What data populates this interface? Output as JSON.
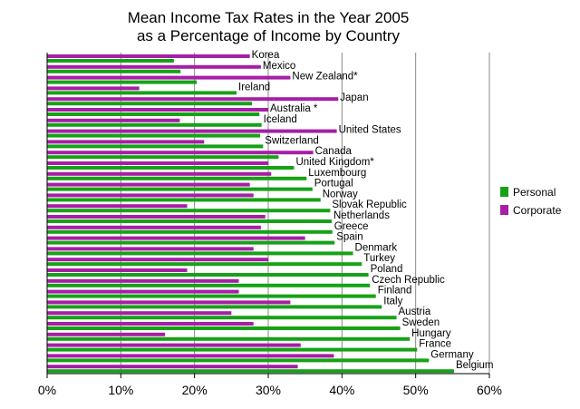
{
  "chart_data": {
    "type": "bar",
    "orientation": "horizontal",
    "title": "Mean Income Tax Rates in the Year 2005",
    "subtitle": "as a Percentage of Income by Country",
    "xlabel": "",
    "ylabel": "",
    "xlim": [
      0,
      60
    ],
    "x_ticks": [
      "0%",
      "10%",
      "20%",
      "30%",
      "40%",
      "50%",
      "60%"
    ],
    "x_tick_values": [
      0,
      10,
      20,
      30,
      40,
      50,
      60
    ],
    "grid": "vertical",
    "legend_position": "right",
    "categories": [
      "Korea",
      "Mexico",
      "New Zealand*",
      "Ireland",
      "Japan",
      "Australia *",
      "Iceland",
      "United States",
      "Switzerland",
      "Canada",
      "United Kingdom*",
      "Luxembourg",
      "Portugal",
      "Norway",
      "Slovak Republic",
      "Netherlands",
      "Greece",
      "Spain",
      "Denmark",
      "Turkey",
      "Poland",
      "Czech Republic",
      "Finland",
      "Italy",
      "Austria",
      "Sweden",
      "Hungary",
      "France",
      "Germany",
      "Belgium"
    ],
    "series": [
      {
        "name": "Personal",
        "color": "#17a117",
        "values": [
          17.2,
          18.1,
          20.3,
          25.7,
          27.8,
          28.8,
          29.1,
          28.9,
          29.3,
          31.4,
          33.5,
          35.2,
          36.0,
          37.1,
          38.4,
          38.6,
          38.7,
          39.0,
          41.5,
          42.7,
          43.6,
          43.8,
          44.6,
          45.4,
          47.4,
          47.9,
          49.2,
          50.2,
          51.8,
          55.2
        ]
      },
      {
        "name": "Corporate",
        "color": "#a61fa6",
        "values": [
          27.5,
          29.0,
          33.0,
          12.5,
          39.5,
          30.0,
          18.0,
          39.3,
          21.3,
          36.1,
          30.0,
          30.4,
          27.5,
          28.0,
          19.0,
          29.6,
          29.0,
          35.0,
          28.0,
          30.0,
          19.0,
          26.0,
          26.0,
          33.0,
          25.0,
          28.0,
          16.0,
          34.4,
          38.9,
          34.0
        ]
      }
    ]
  },
  "legend": {
    "items": [
      {
        "label": "Personal",
        "color": "#17a117"
      },
      {
        "label": "Corporate",
        "color": "#a61fa6"
      }
    ]
  }
}
